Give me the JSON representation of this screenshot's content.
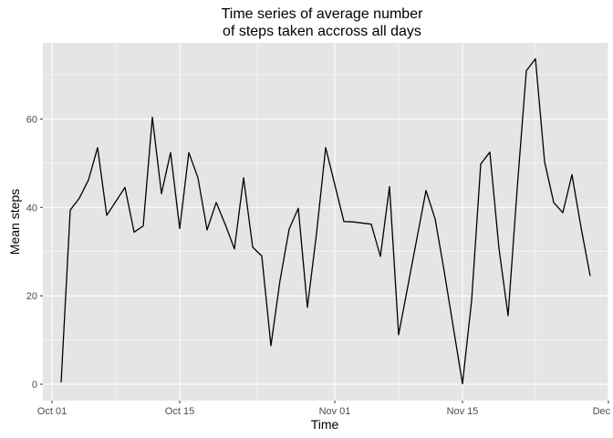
{
  "chart_data": {
    "type": "line",
    "title": [
      "Time series of average number",
      "of steps taken accross all days"
    ],
    "xlabel": "Time",
    "ylabel": "Mean steps",
    "x_ticks": [
      {
        "label": "Oct 01",
        "date": "2012-10-01"
      },
      {
        "label": "Oct 15",
        "date": "2012-10-15"
      },
      {
        "label": "Nov 01",
        "date": "2012-11-01"
      },
      {
        "label": "Nov 15",
        "date": "2012-11-15"
      },
      {
        "label": "Dec 01",
        "date": "2012-12-01"
      }
    ],
    "y_ticks": [
      0,
      20,
      40,
      60
    ],
    "xlim": [
      "2012-09-30",
      "2012-12-01"
    ],
    "ylim": [
      -3.7,
      77.2
    ],
    "grid": true,
    "colors": {
      "panel": "#e5e5e5",
      "grid": "#ffffff",
      "line": "#000000"
    },
    "series": [
      {
        "color": "#000000",
        "points": [
          [
            "2012-10-02",
            0.4
          ],
          [
            "2012-10-03",
            39.4
          ],
          [
            "2012-10-04",
            42.1
          ],
          [
            "2012-10-05",
            46.2
          ],
          [
            "2012-10-06",
            53.5
          ],
          [
            "2012-10-07",
            38.2
          ],
          [
            "2012-10-09",
            44.5
          ],
          [
            "2012-10-10",
            34.4
          ],
          [
            "2012-10-11",
            35.8
          ],
          [
            "2012-10-12",
            60.4
          ],
          [
            "2012-10-13",
            43.1
          ],
          [
            "2012-10-14",
            52.4
          ],
          [
            "2012-10-15",
            35.2
          ],
          [
            "2012-10-16",
            52.4
          ],
          [
            "2012-10-17",
            46.7
          ],
          [
            "2012-10-18",
            34.9
          ],
          [
            "2012-10-19",
            41.1
          ],
          [
            "2012-10-20",
            36.1
          ],
          [
            "2012-10-21",
            30.6
          ],
          [
            "2012-10-22",
            46.7
          ],
          [
            "2012-10-23",
            31.0
          ],
          [
            "2012-10-24",
            29.0
          ],
          [
            "2012-10-25",
            8.7
          ],
          [
            "2012-10-26",
            23.5
          ],
          [
            "2012-10-27",
            35.1
          ],
          [
            "2012-10-28",
            39.8
          ],
          [
            "2012-10-29",
            17.4
          ],
          [
            "2012-10-30",
            34.1
          ],
          [
            "2012-10-31",
            53.5
          ],
          [
            "2012-11-02",
            36.8
          ],
          [
            "2012-11-03",
            36.7
          ],
          [
            "2012-11-05",
            36.2
          ],
          [
            "2012-11-06",
            28.9
          ],
          [
            "2012-11-07",
            44.7
          ],
          [
            "2012-11-08",
            11.2
          ],
          [
            "2012-11-11",
            43.8
          ],
          [
            "2012-11-12",
            37.4
          ],
          [
            "2012-11-13",
            25.5
          ],
          [
            "2012-11-15",
            0.1
          ],
          [
            "2012-11-16",
            18.9
          ],
          [
            "2012-11-17",
            49.8
          ],
          [
            "2012-11-18",
            52.5
          ],
          [
            "2012-11-19",
            30.7
          ],
          [
            "2012-11-20",
            15.5
          ],
          [
            "2012-11-21",
            44.4
          ],
          [
            "2012-11-22",
            70.9
          ],
          [
            "2012-11-23",
            73.6
          ],
          [
            "2012-11-24",
            50.3
          ],
          [
            "2012-11-25",
            41.1
          ],
          [
            "2012-11-26",
            38.8
          ],
          [
            "2012-11-27",
            47.4
          ],
          [
            "2012-11-28",
            35.4
          ],
          [
            "2012-11-29",
            24.5
          ]
        ]
      }
    ]
  }
}
